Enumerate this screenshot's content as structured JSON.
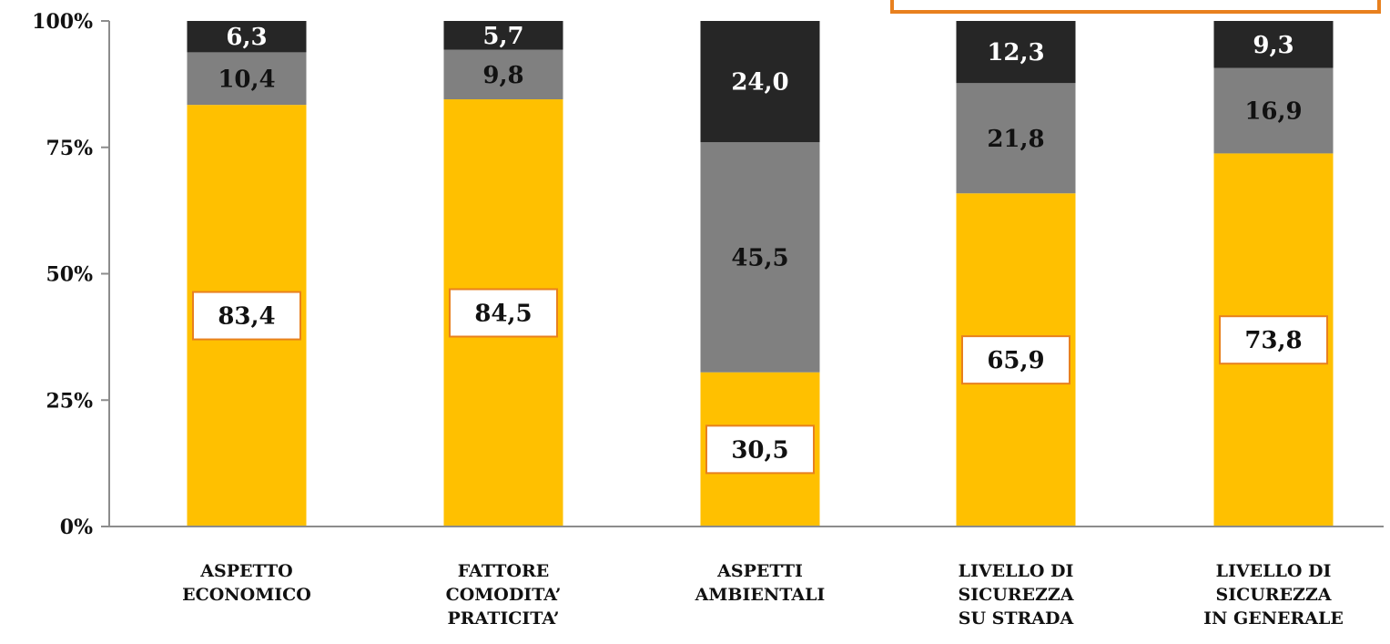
{
  "chart_data": {
    "type": "bar",
    "stacked": true,
    "categories": [
      [
        "ASPETTO",
        "ECONOMICO"
      ],
      [
        "FATTORE",
        "COMODITA’",
        "PRATICITA’"
      ],
      [
        "ASPETTI",
        "AMBIENTALI"
      ],
      [
        "LIVELLO DI",
        "SICUREZZA",
        "SU STRADA"
      ],
      [
        "LIVELLO DI",
        "SICUREZZA",
        "IN GENERALE"
      ]
    ],
    "series": [
      {
        "values": [
          83.4,
          84.5,
          30.5,
          65.9,
          73.8
        ],
        "color": "#FFC000",
        "label_color": "#111111",
        "boxed_labels": true
      },
      {
        "values": [
          10.4,
          9.8,
          45.5,
          21.8,
          16.9
        ],
        "color": "#808080",
        "label_color": "#111111",
        "boxed_labels": false
      },
      {
        "values": [
          6.3,
          5.7,
          24.0,
          12.3,
          9.3
        ],
        "color": "#262626",
        "label_color": "#FFFFFF",
        "boxed_labels": false
      }
    ],
    "value_labels": [
      [
        "83,4",
        "84,5",
        "30,5",
        "65,9",
        "73,8"
      ],
      [
        "10,4",
        "9,8",
        "45,5",
        "21,8",
        "16,9"
      ],
      [
        "6,3",
        "5,7",
        "24,0",
        "12,3",
        "9,3"
      ]
    ],
    "yticks": [
      0,
      25,
      50,
      75,
      100
    ],
    "ytick_labels": [
      "0%",
      "25%",
      "50%",
      "75%",
      "100%"
    ],
    "ylim": [
      0,
      100
    ],
    "grid": false,
    "legend": "none",
    "title": "",
    "xlabel": "",
    "ylabel": "",
    "callout_border_color": "#E8801E",
    "label_box_border_color": "#E8801E"
  }
}
